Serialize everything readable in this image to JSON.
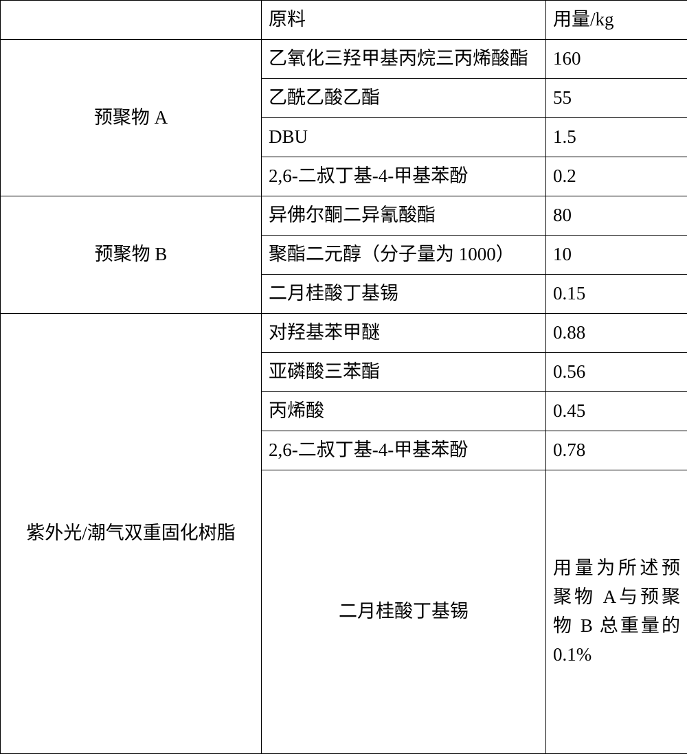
{
  "header": {
    "col1": "",
    "col2": "原料",
    "col3": "用量/kg"
  },
  "groups": [
    {
      "label": "预聚物 A",
      "rows": [
        {
          "material": "乙氧化三羟甲基丙烷三丙烯酸酯",
          "amount": "160"
        },
        {
          "material": "乙酰乙酸乙酯",
          "amount": "55"
        },
        {
          "material": "DBU",
          "amount": "1.5"
        },
        {
          "material": "2,6-二叔丁基-4-甲基苯酚",
          "amount": "0.2"
        }
      ]
    },
    {
      "label": "预聚物 B",
      "rows": [
        {
          "material": "异佛尔酮二异氰酸酯",
          "amount": "80"
        },
        {
          "material": "聚酯二元醇（分子量为 1000）",
          "amount": "10"
        },
        {
          "material": "二月桂酸丁基锡",
          "amount": "0.15"
        }
      ]
    },
    {
      "label": "紫外光/潮气双重固化树脂",
      "rows": [
        {
          "material": "对羟基苯甲醚",
          "amount": "0.88"
        },
        {
          "material": "亚磷酸三苯酯",
          "amount": "0.56"
        },
        {
          "material": "丙烯酸",
          "amount": "0.45"
        },
        {
          "material": "2,6-二叔丁基-4-甲基苯酚",
          "amount": "0.78"
        },
        {
          "material": "二月桂酸丁基锡",
          "amount": "用量为所述预聚物 A与预聚物 B 总重量的0.1%"
        }
      ]
    }
  ],
  "row_heights": {
    "header": 44,
    "normal": 44,
    "last": 400
  }
}
